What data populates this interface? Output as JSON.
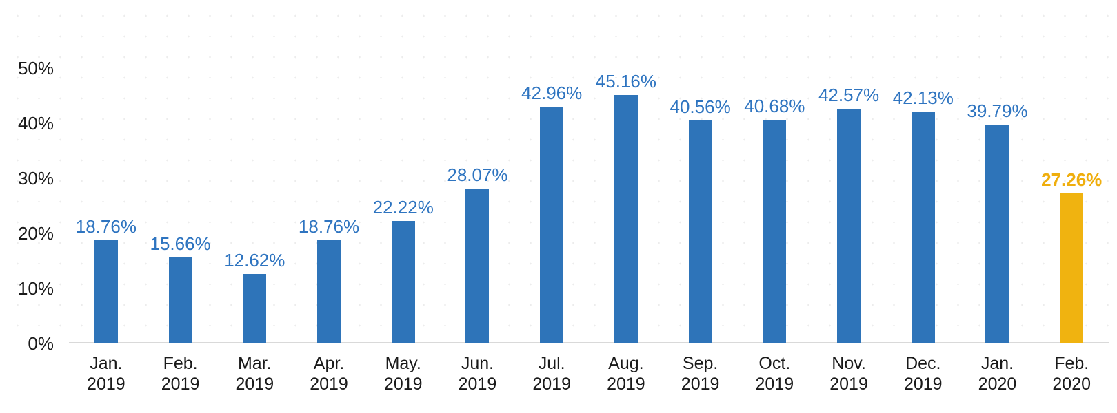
{
  "chart_data": {
    "type": "bar",
    "title": "",
    "xlabel": "",
    "ylabel": "",
    "ylim": [
      0,
      50
    ],
    "grid": "faint dot texture, light gray baseline only",
    "legend": false,
    "categories": [
      {
        "month": "Jan.",
        "year": "2019"
      },
      {
        "month": "Feb.",
        "year": "2019"
      },
      {
        "month": "Mar.",
        "year": "2019"
      },
      {
        "month": "Apr.",
        "year": "2019"
      },
      {
        "month": "May.",
        "year": "2019"
      },
      {
        "month": "Jun.",
        "year": "2019"
      },
      {
        "month": "Jul.",
        "year": "2019"
      },
      {
        "month": "Aug.",
        "year": "2019"
      },
      {
        "month": "Sep.",
        "year": "2019"
      },
      {
        "month": "Oct.",
        "year": "2019"
      },
      {
        "month": "Nov.",
        "year": "2019"
      },
      {
        "month": "Dec.",
        "year": "2019"
      },
      {
        "month": "Jan.",
        "year": "2020"
      },
      {
        "month": "Feb.",
        "year": "2020"
      }
    ],
    "values": [
      18.76,
      15.66,
      12.62,
      18.76,
      22.22,
      28.07,
      42.96,
      45.16,
      40.56,
      40.68,
      42.57,
      42.13,
      39.79,
      27.26
    ],
    "data_labels": [
      "18.76%",
      "15.66%",
      "12.62%",
      "18.76%",
      "22.22%",
      "28.07%",
      "42.96%",
      "45.16%",
      "40.56%",
      "40.68%",
      "42.57%",
      "42.13%",
      "39.79%",
      "27.26%"
    ],
    "highlight_index": 13,
    "y_ticks": [
      {
        "value": 0,
        "label": "0%"
      },
      {
        "value": 10,
        "label": "10%"
      },
      {
        "value": 20,
        "label": "20%"
      },
      {
        "value": 30,
        "label": "30%"
      },
      {
        "value": 40,
        "label": "40%"
      },
      {
        "value": 50,
        "label": "50%"
      }
    ],
    "colors": {
      "bar": "#2e74b9",
      "bar_label": "#2e74c0",
      "highlight_bar": "#f0b310",
      "highlight_label": "#efae0d",
      "axis_line": "#d9d9d9",
      "tick_text": "#1a1a1a"
    }
  }
}
